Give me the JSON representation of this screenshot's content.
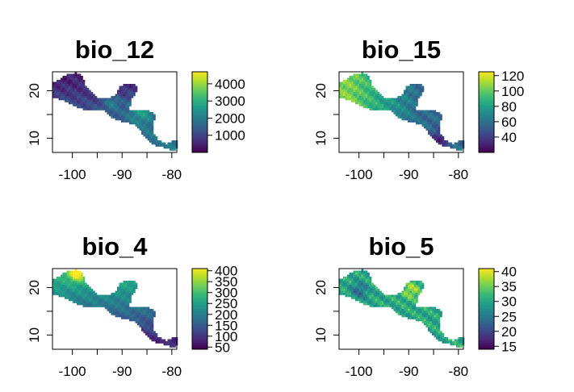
{
  "colors": {
    "viridis": [
      "#440154",
      "#482878",
      "#3e4989",
      "#31688e",
      "#26828e",
      "#1f9e89",
      "#35b779",
      "#6ece58",
      "#b5de2b",
      "#fde725"
    ],
    "axis": "#000000",
    "background": "#ffffff"
  },
  "chart_data": [
    {
      "type": "heatmap",
      "title": "bio_12",
      "xlim": [
        -104,
        -79
      ],
      "ylim": [
        7,
        24
      ],
      "x_ticks": [
        -100,
        -90,
        -80
      ],
      "x_tick_labels": [
        "-100",
        "-90",
        "-80"
      ],
      "y_ticks": [
        10,
        20
      ],
      "y_tick_labels": [
        "10",
        "20"
      ],
      "legend": {
        "range": [
          0,
          4700
        ],
        "ticks": [
          1000,
          2000,
          3000,
          4000
        ],
        "tick_labels": [
          "1000",
          "2000",
          "3000",
          "4000"
        ]
      },
      "pattern": "wet-south"
    },
    {
      "type": "heatmap",
      "title": "bio_15",
      "xlim": [
        -104,
        -79
      ],
      "ylim": [
        7,
        24
      ],
      "x_ticks": [
        -100,
        -90,
        -80
      ],
      "x_tick_labels": [
        "-100",
        "-90",
        "-80"
      ],
      "y_ticks": [
        10,
        20
      ],
      "y_tick_labels": [
        "10",
        "20"
      ],
      "legend": {
        "range": [
          20,
          125
        ],
        "ticks": [
          40,
          60,
          80,
          100,
          120
        ],
        "tick_labels": [
          "40",
          "60",
          "80",
          "100",
          "120"
        ]
      },
      "pattern": "seasonal-northwest"
    },
    {
      "type": "heatmap",
      "title": "bio_4",
      "xlim": [
        -104,
        -79
      ],
      "ylim": [
        7,
        24
      ],
      "x_ticks": [
        -100,
        -90,
        -80
      ],
      "x_tick_labels": [
        "-100",
        "-90",
        "-80"
      ],
      "y_ticks": [
        10,
        20
      ],
      "y_tick_labels": [
        "10",
        "20"
      ],
      "legend": {
        "range": [
          40,
          410
        ],
        "ticks": [
          50,
          100,
          150,
          200,
          250,
          300,
          350,
          400
        ],
        "tick_labels": [
          "50",
          "100",
          "150",
          "200",
          "250",
          "300",
          "350",
          "400"
        ]
      },
      "pattern": "latitude-gradient"
    },
    {
      "type": "heatmap",
      "title": "bio_5",
      "xlim": [
        -104,
        -79
      ],
      "ylim": [
        7,
        24
      ],
      "x_ticks": [
        -100,
        -90,
        -80
      ],
      "x_tick_labels": [
        "-100",
        "-90",
        "-80"
      ],
      "y_ticks": [
        10,
        20
      ],
      "y_tick_labels": [
        "10",
        "20"
      ],
      "legend": {
        "range": [
          14,
          41
        ],
        "ticks": [
          15,
          20,
          25,
          30,
          35,
          40
        ],
        "tick_labels": [
          "15",
          "20",
          "25",
          "30",
          "35",
          "40"
        ]
      },
      "pattern": "hot-lowlands"
    }
  ]
}
